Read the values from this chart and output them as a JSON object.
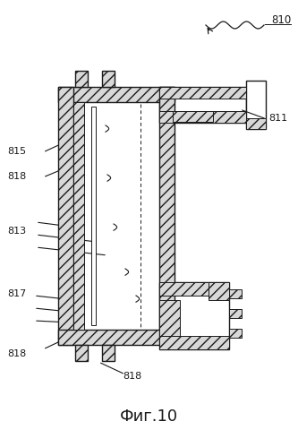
{
  "figure_label": "Фиг.10",
  "ref_810": "810",
  "ref_811": "811",
  "ref_813": "813",
  "ref_815": "815",
  "ref_817": "817",
  "ref_818": "818",
  "bg_color": "#ffffff",
  "line_color": "#1a1a1a",
  "hatch_color": "#555555",
  "figsize": [
    3.33,
    4.99
  ],
  "dpi": 100
}
